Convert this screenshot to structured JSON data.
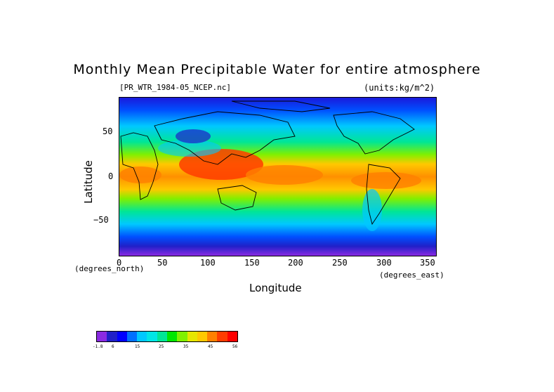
{
  "title": "Monthly Mean Precipitable Water for entire atmosphere",
  "file_label": "[PR_WTR_1984-05_NCEP.nc]",
  "units_label": "(units:kg/m^2)",
  "y_axis_label": "Latitude",
  "x_axis_label": "Longitude",
  "x_units_left": "(degrees_north)",
  "x_units_right": "(degrees_east)",
  "y_ticks": [
    "50",
    "0",
    "−50"
  ],
  "x_ticks": [
    "0",
    "50",
    "100",
    "150",
    "200",
    "250",
    "300",
    "350"
  ],
  "colorbar": {
    "colors": [
      "#8a2be2",
      "#2020c8",
      "#0000ff",
      "#0070ff",
      "#00c8ff",
      "#00e6e6",
      "#00e696",
      "#00e600",
      "#80f000",
      "#e6e600",
      "#ffc800",
      "#ff8000",
      "#ff3c00",
      "#ff0000"
    ],
    "labels": [
      "-1.8",
      "6",
      "15",
      "25",
      "35",
      "45",
      "56"
    ]
  }
}
